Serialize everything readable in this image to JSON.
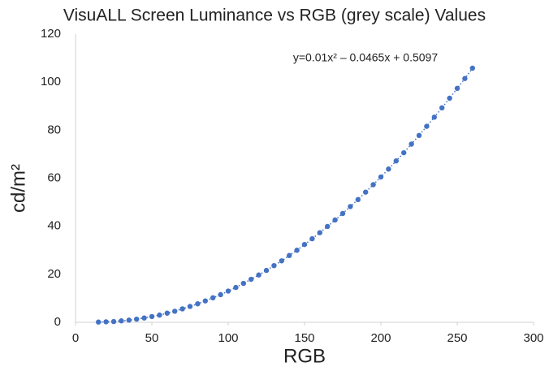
{
  "chart_data": {
    "type": "scatter",
    "title": "VisuALL Screen Luminance vs RGB (grey scale) Values",
    "x_label": "RGB",
    "y_label": "cd/m²",
    "annotation": "y=0.01x² – 0.0465x + 0.5097",
    "color": "#4472c4",
    "x": [
      15,
      20,
      25,
      30,
      35,
      40,
      45,
      50,
      55,
      60,
      65,
      70,
      75,
      80,
      85,
      90,
      95,
      100,
      105,
      110,
      115,
      120,
      125,
      130,
      135,
      140,
      145,
      150,
      155,
      160,
      165,
      170,
      175,
      180,
      185,
      190,
      195,
      200,
      205,
      210,
      215,
      220,
      225,
      230,
      235,
      240,
      245,
      250,
      255,
      260
    ],
    "values": [
      0.1,
      0.2,
      0.3,
      0.6,
      0.9,
      1.3,
      1.8,
      2.4,
      3.0,
      3.8,
      4.6,
      5.6,
      6.6,
      7.7,
      8.9,
      10.2,
      11.5,
      13.0,
      14.5,
      16.2,
      17.9,
      19.7,
      21.6,
      23.6,
      25.6,
      27.8,
      30.0,
      32.4,
      34.8,
      37.3,
      39.9,
      42.6,
      45.3,
      48.2,
      51.1,
      54.2,
      57.3,
      60.5,
      63.8,
      67.2,
      70.6,
      74.2,
      77.8,
      81.6,
      85.4,
      89.3,
      93.3,
      97.4,
      101.5,
      105.8
    ],
    "xlim": [
      0,
      300
    ],
    "xticks": [
      0,
      50,
      100,
      150,
      200,
      250,
      300
    ],
    "ylim": [
      0,
      120
    ],
    "yticks": [
      0,
      20,
      40,
      60,
      80,
      100,
      120
    ],
    "grid": false
  }
}
